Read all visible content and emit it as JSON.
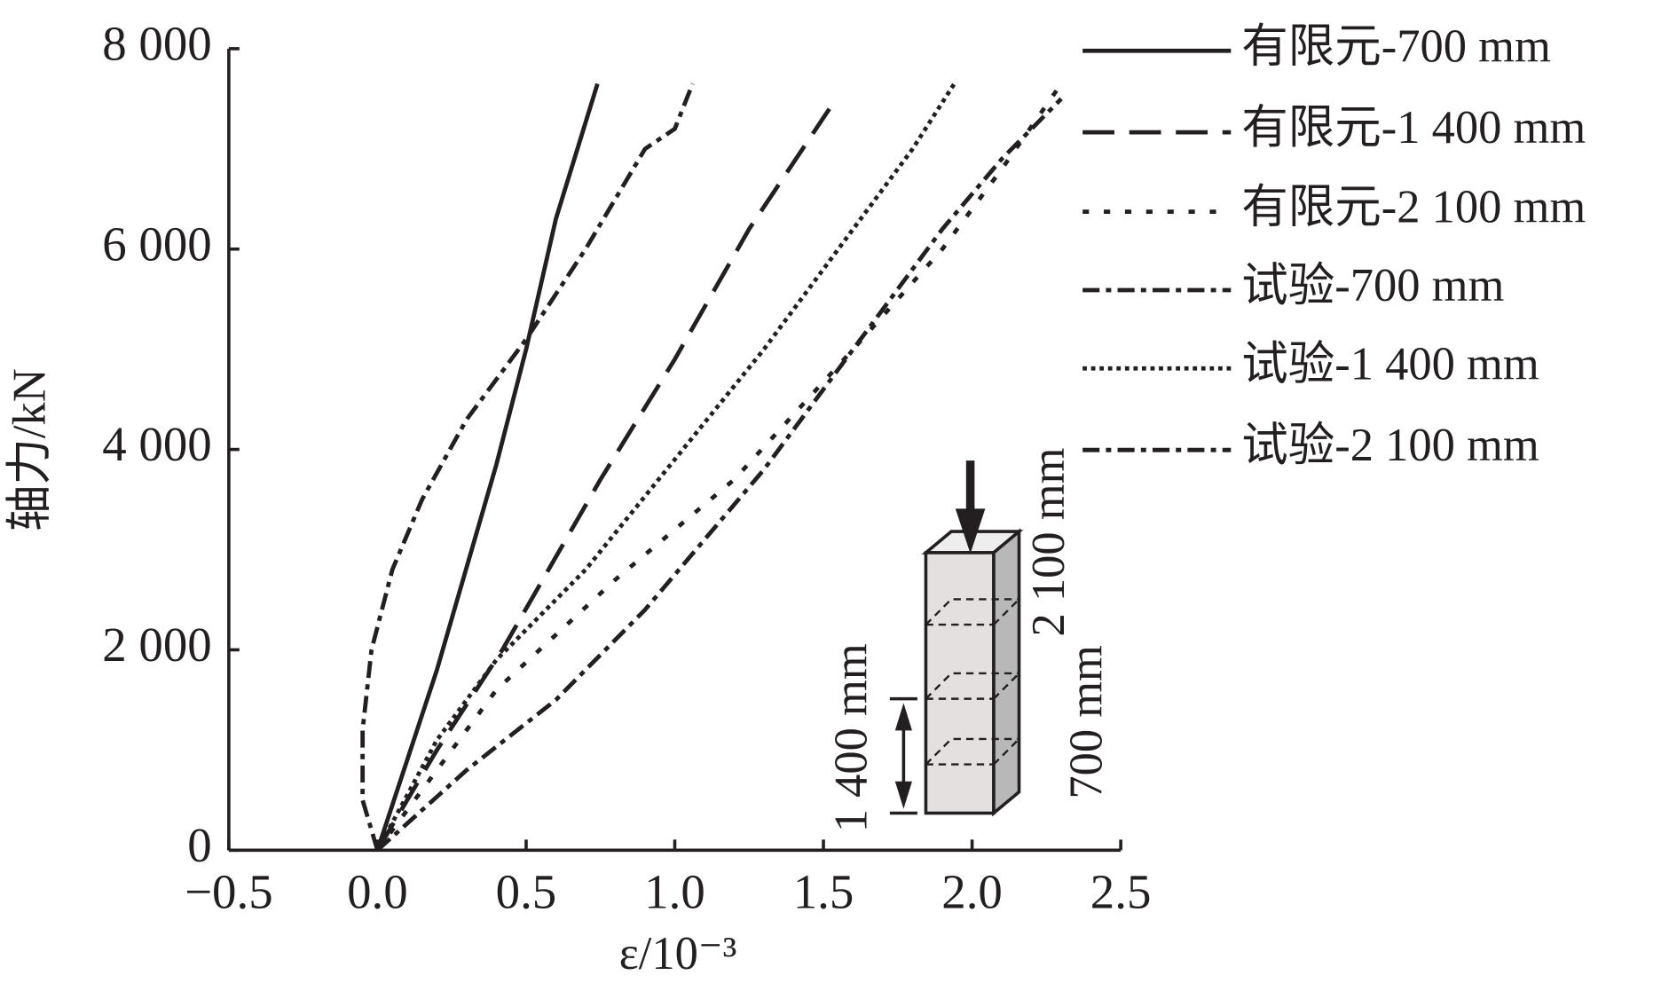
{
  "chart_data": {
    "type": "line",
    "xlabel": "ε/10⁻³",
    "ylabel": "轴力/kN",
    "xlim": [
      -0.5,
      2.5
    ],
    "ylim": [
      0,
      8000
    ],
    "xticks": [
      {
        "value": -0.5,
        "label": "−0.5"
      },
      {
        "value": 0,
        "label": "0.0"
      },
      0.5,
      {
        "value": 1,
        "label": "1.0"
      },
      1.5,
      {
        "value": 2,
        "label": "2.0"
      },
      2.5
    ],
    "yticks": [
      0,
      {
        "value": 2000,
        "label": "2 000"
      },
      {
        "value": 4000,
        "label": "4 000"
      },
      {
        "value": 6000,
        "label": "6 000"
      },
      {
        "value": 8000,
        "label": "8 000"
      }
    ],
    "legend": "top-right",
    "series": [
      {
        "name": "有限元-700 mm",
        "color": "#231f20",
        "linestyle": "solid",
        "x": [
          0,
          0.2,
          0.4,
          0.5,
          0.6,
          0.74
        ],
        "values": [
          0,
          1800,
          3850,
          5000,
          6300,
          7650
        ]
      },
      {
        "name": "有限元-1 400 mm",
        "color": "#231f20",
        "linestyle": "dashed",
        "x": [
          0,
          0.2,
          0.42,
          0.75,
          1.0,
          1.25,
          1.52
        ],
        "values": [
          0,
          1000,
          2000,
          3700,
          4900,
          6200,
          7400
        ]
      },
      {
        "name": "有限元-2 100 mm",
        "color": "#231f20",
        "linestyle": "dotted",
        "x": [
          0,
          0.4,
          0.8,
          1.2,
          1.6,
          1.9,
          2.1,
          2.3
        ],
        "values": [
          0,
          1600,
          2700,
          3700,
          5000,
          6000,
          6800,
          7650
        ]
      },
      {
        "name": "试验-700 mm",
        "color": "#231f20",
        "linestyle": "dashdot",
        "x": [
          0,
          -0.05,
          -0.05,
          -0.02,
          0.05,
          0.15,
          0.3,
          0.5,
          0.7,
          0.9,
          1.0,
          1.06
        ],
        "values": [
          0,
          500,
          1200,
          2000,
          2800,
          3500,
          4300,
          5100,
          6000,
          7000,
          7200,
          7650
        ]
      },
      {
        "name": "试验-1 400 mm",
        "color": "#231f20",
        "linestyle": "finedotted",
        "x": [
          0,
          0.2,
          0.4,
          0.7,
          1.0,
          1.3,
          1.6,
          1.8,
          1.94
        ],
        "values": [
          0,
          1100,
          1900,
          2800,
          3900,
          5000,
          6200,
          7000,
          7650
        ]
      },
      {
        "name": "试验-2 100 mm",
        "color": "#231f20",
        "linestyle": "dashdot",
        "x": [
          0,
          0.3,
          0.6,
          0.9,
          1.3,
          1.6,
          1.9,
          2.1,
          2.3
        ],
        "values": [
          0,
          800,
          1500,
          2400,
          3800,
          5000,
          6200,
          6900,
          7500
        ]
      }
    ],
    "inset_labels": [
      "2 100 mm",
      "1 400 mm",
      "700 mm"
    ]
  }
}
